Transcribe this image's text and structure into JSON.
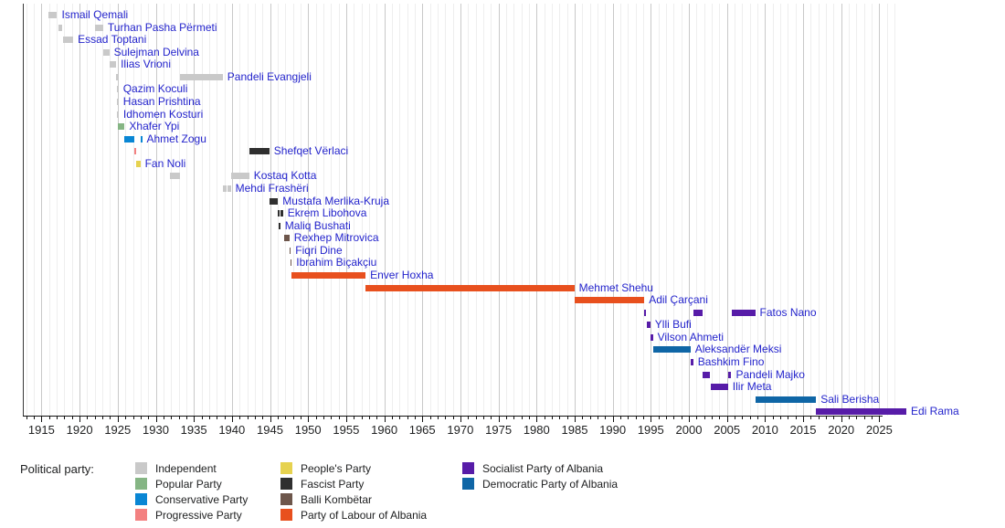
{
  "chart_data": {
    "type": "timeline",
    "title": "",
    "description": "Gantt-style timeline of prime ministers of Albania colored by political party",
    "x_axis": {
      "domain_min": 1912.55,
      "domain_max": 2027.35,
      "ticks": [
        1915,
        1920,
        1925,
        1930,
        1935,
        1940,
        1945,
        1950,
        1955,
        1960,
        1965,
        1970,
        1975,
        1980,
        1985,
        1990,
        1995,
        2000,
        2005,
        2010,
        2015,
        2020,
        2025
      ],
      "minor_tick_step": 1,
      "minor_tick_start": 1913,
      "minor_tick_end": 2026,
      "axis_end_year": 2025.4
    },
    "grid": {
      "minor_color": "#eeeeee",
      "major_color": "#c9c9c9",
      "on": true
    },
    "parties": {
      "independent": {
        "label": "Independent",
        "color": "#c9c9c9"
      },
      "popular": {
        "label": "Popular Party",
        "color": "#85b584"
      },
      "conservative": {
        "label": "Conservative Party",
        "color": "#0986d4"
      },
      "progressive": {
        "label": "Progressive Party",
        "color": "#f38181"
      },
      "peoples": {
        "label": "People's Party",
        "color": "#e6d24f"
      },
      "fascist": {
        "label": "Fascist Party",
        "color": "#2f2f2f"
      },
      "balli": {
        "label": "Balli Kombëtar",
        "color": "#6d564b"
      },
      "labour": {
        "label": "Party of Labour of Albania",
        "color": "#e8501e"
      },
      "socialist": {
        "label": "Socialist Party of Albania",
        "color": "#571ca8"
      },
      "democratic": {
        "label": "Democratic Party of Albania",
        "color": "#0f66a6"
      }
    },
    "people": [
      {
        "name": "Ismail Qemali",
        "terms": [
          {
            "start": 1912.9,
            "end": 1914.05,
            "party": "independent"
          }
        ]
      },
      {
        "name": "Turhan Pasha Përmeti",
        "terms": [
          {
            "start": 1914.2,
            "end": 1914.75,
            "party": "independent"
          },
          {
            "start": 1918.98,
            "end": 1920.1,
            "party": "independent"
          }
        ]
      },
      {
        "name": "Essad Toptani",
        "terms": [
          {
            "start": 1914.78,
            "end": 1916.16,
            "party": "independent"
          }
        ]
      },
      {
        "name": "Sulejman Delvina",
        "terms": [
          {
            "start": 1920.08,
            "end": 1920.9,
            "party": "independent"
          }
        ]
      },
      {
        "name": "Ilias Vrioni",
        "terms": [
          {
            "start": 1920.9,
            "end": 1921.5,
            "party": "independent"
          },
          {
            "start": 1921.56,
            "end": 1921.8,
            "party": "independent"
          }
        ]
      },
      {
        "name": "Pandeli Evangjeli",
        "terms": [
          {
            "start": 1921.8,
            "end": 1921.93,
            "party": "independent"
          },
          {
            "start": 1930.18,
            "end": 1935.8,
            "party": "independent"
          }
        ]
      },
      {
        "name": "Qazim Koculi",
        "terms": [
          {
            "start": 1921.93,
            "end": 1921.97,
            "party": "independent"
          }
        ]
      },
      {
        "name": "Hasan Prishtina",
        "terms": [
          {
            "start": 1921.94,
            "end": 1921.98,
            "party": "independent"
          }
        ]
      },
      {
        "name": "Idhomen Kosturi",
        "terms": [
          {
            "start": 1921.95,
            "end": 1922.0,
            "party": "independent"
          }
        ]
      },
      {
        "name": "Xhafer Ypi",
        "terms": [
          {
            "start": 1921.99,
            "end": 1922.92,
            "party": "popular"
          }
        ]
      },
      {
        "name": "Ahmet Zogu",
        "terms": [
          {
            "start": 1922.92,
            "end": 1924.15,
            "party": "conservative"
          },
          {
            "start": 1925.02,
            "end": 1925.12,
            "party": "conservative"
          }
        ]
      },
      {
        "name": "Shefqet Vërlaci",
        "terms": [
          {
            "start": 1924.17,
            "end": 1924.4,
            "party": "progressive"
          },
          {
            "start": 1939.28,
            "end": 1941.92,
            "party": "fascist"
          }
        ]
      },
      {
        "name": "Fan Noli",
        "terms": [
          {
            "start": 1924.46,
            "end": 1924.98,
            "party": "peoples"
          }
        ]
      },
      {
        "name": "Kostaq Kotta",
        "terms": [
          {
            "start": 1928.8,
            "end": 1930.17,
            "party": "independent"
          },
          {
            "start": 1936.85,
            "end": 1939.27,
            "party": "independent"
          }
        ]
      },
      {
        "name": "Mehdi Frashëri",
        "terms": [
          {
            "start": 1935.8,
            "end": 1936.3,
            "party": "independent"
          },
          {
            "start": 1936.4,
            "end": 1936.85,
            "party": "independent"
          }
        ]
      },
      {
        "name": "Mustafa Merlika-Kruja",
        "terms": [
          {
            "start": 1941.92,
            "end": 1943.05,
            "party": "fascist"
          }
        ]
      },
      {
        "name": "Ekrem Libohova",
        "terms": [
          {
            "start": 1943.05,
            "end": 1943.12,
            "party": "fascist"
          },
          {
            "start": 1943.36,
            "end": 1943.7,
            "party": "fascist"
          }
        ]
      },
      {
        "name": "Maliq Bushati",
        "terms": [
          {
            "start": 1943.12,
            "end": 1943.36,
            "party": "fascist"
          }
        ]
      },
      {
        "name": "Rexhep Mitrovica",
        "terms": [
          {
            "start": 1943.84,
            "end": 1944.55,
            "party": "balli"
          }
        ]
      },
      {
        "name": "Fiqri Dine",
        "terms": [
          {
            "start": 1944.55,
            "end": 1944.66,
            "party": "balli"
          }
        ]
      },
      {
        "name": "Ibrahim Biçakçiu",
        "terms": [
          {
            "start": 1944.68,
            "end": 1944.81,
            "party": "balli"
          }
        ]
      },
      {
        "name": "Enver Hoxha",
        "terms": [
          {
            "start": 1944.81,
            "end": 1954.55,
            "party": "labour"
          }
        ]
      },
      {
        "name": "Mehmet Shehu",
        "terms": [
          {
            "start": 1954.55,
            "end": 1981.96,
            "party": "labour"
          }
        ]
      },
      {
        "name": "Adil Çarçani",
        "terms": [
          {
            "start": 1982.04,
            "end": 1991.15,
            "party": "labour"
          }
        ]
      },
      {
        "name": "Fatos Nano",
        "terms": [
          {
            "start": 1991.15,
            "end": 1991.43,
            "party": "socialist"
          },
          {
            "start": 1997.56,
            "end": 1998.75,
            "party": "socialist"
          },
          {
            "start": 2002.58,
            "end": 2005.7,
            "party": "socialist"
          }
        ]
      },
      {
        "name": "Ylli Bufi",
        "terms": [
          {
            "start": 1991.43,
            "end": 1991.94,
            "party": "socialist"
          }
        ]
      },
      {
        "name": "Vilson Ahmeti",
        "terms": [
          {
            "start": 1991.94,
            "end": 1992.28,
            "party": "socialist"
          }
        ]
      },
      {
        "name": "Aleksandër Meksi",
        "terms": [
          {
            "start": 1992.28,
            "end": 1997.2,
            "party": "democratic"
          }
        ]
      },
      {
        "name": "Bashkim Fino",
        "terms": [
          {
            "start": 1997.2,
            "end": 1997.56,
            "party": "socialist"
          }
        ]
      },
      {
        "name": "Pandeli Majko",
        "terms": [
          {
            "start": 1998.75,
            "end": 1999.82,
            "party": "socialist"
          },
          {
            "start": 2002.14,
            "end": 2002.58,
            "party": "socialist"
          }
        ]
      },
      {
        "name": "Ilir Meta",
        "terms": [
          {
            "start": 1999.82,
            "end": 2002.14,
            "party": "socialist"
          }
        ]
      },
      {
        "name": "Sali Berisha",
        "terms": [
          {
            "start": 2005.7,
            "end": 2013.7,
            "party": "democratic"
          }
        ]
      },
      {
        "name": "Edi Rama",
        "terms": [
          {
            "start": 2013.7,
            "end": 2025.55,
            "party": "socialist"
          }
        ]
      }
    ],
    "legend": {
      "title": "Political party:",
      "position": "bottom",
      "columns": [
        [
          "independent",
          "popular",
          "conservative",
          "progressive"
        ],
        [
          "peoples",
          "fascist",
          "balli",
          "labour"
        ],
        [
          "socialist",
          "democratic"
        ]
      ]
    },
    "label_link_color": "#2424cc"
  }
}
